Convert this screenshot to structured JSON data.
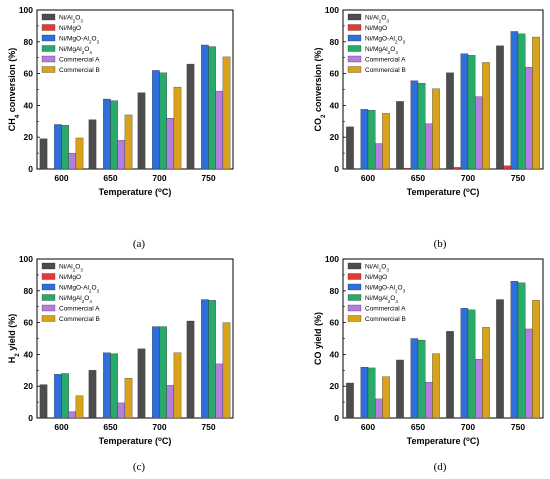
{
  "series_names": [
    [
      "Ni/Al",
      "2",
      "O",
      "3"
    ],
    [
      "Ni/MgO"
    ],
    [
      "Ni/MgO-Al",
      "2",
      "O",
      "3"
    ],
    [
      "Ni/MgAl",
      "2",
      "O",
      "4"
    ],
    [
      "Commercial A"
    ],
    [
      "Commercial B"
    ]
  ],
  "colors": {
    "Ni/Al2O3": "#4d4d4d",
    "Ni/MgO": "#e53935",
    "Ni/MgO-Al2O3": "#2f6fdb",
    "Ni/MgAl2O4": "#2aaa6a",
    "Commercial A": "#b47ee0",
    "Commercial B": "#d8a21c"
  },
  "chart_data": [
    {
      "type": "bar",
      "panel_label": "(a)",
      "ylabel": [
        "CH",
        "4",
        " conversion (%)"
      ],
      "xlabel": [
        "Temperature (",
        "o",
        "C)"
      ],
      "categories": [
        "600",
        "650",
        "700",
        "750"
      ],
      "ylim": [
        0,
        100
      ],
      "yticks": [
        0,
        20,
        40,
        60,
        80,
        100
      ],
      "series": [
        {
          "name": "Ni/Al2O3",
          "values": [
            19,
            31,
            48,
            66
          ]
        },
        {
          "name": "Ni/MgO",
          "values": [
            0,
            0,
            0,
            0
          ]
        },
        {
          "name": "Ni/MgO-Al2O3",
          "values": [
            28,
            44,
            62,
            78
          ]
        },
        {
          "name": "Ni/MgAl2O4",
          "values": [
            27.5,
            43,
            60.5,
            77
          ]
        },
        {
          "name": "Commercial A",
          "values": [
            10,
            18,
            32,
            49
          ]
        },
        {
          "name": "Commercial B",
          "values": [
            19.5,
            34,
            51.5,
            70.5
          ]
        }
      ]
    },
    {
      "type": "bar",
      "panel_label": "(b)",
      "ylabel": [
        "CO",
        "2",
        " conversion (%)"
      ],
      "xlabel": [
        "Temperature (",
        "o",
        "C)"
      ],
      "categories": [
        "600",
        "650",
        "700",
        "750"
      ],
      "ylim": [
        0,
        100
      ],
      "yticks": [
        0,
        20,
        40,
        60,
        80,
        100
      ],
      "series": [
        {
          "name": "Ni/Al2O3",
          "values": [
            26.5,
            42.5,
            60.5,
            77.5
          ]
        },
        {
          "name": "Ni/MgO",
          "values": [
            0,
            0.5,
            1,
            2
          ]
        },
        {
          "name": "Ni/MgO-Al2O3",
          "values": [
            37.5,
            55.5,
            72.5,
            86.5
          ]
        },
        {
          "name": "Ni/MgAl2O4",
          "values": [
            37,
            54,
            71.5,
            85
          ]
        },
        {
          "name": "Commercial A",
          "values": [
            16,
            28.5,
            45.5,
            64
          ]
        },
        {
          "name": "Commercial B",
          "values": [
            35,
            50.5,
            67,
            83
          ]
        }
      ]
    },
    {
      "type": "bar",
      "panel_label": "(c)",
      "ylabel": [
        "H",
        "2",
        " yield (%)"
      ],
      "xlabel": [
        "Temperature (",
        "o",
        "C)"
      ],
      "categories": [
        "600",
        "650",
        "700",
        "750"
      ],
      "ylim": [
        0,
        100
      ],
      "yticks": [
        0,
        20,
        40,
        60,
        80,
        100
      ],
      "series": [
        {
          "name": "Ni/Al2O3",
          "values": [
            21,
            30,
            43.5,
            61
          ]
        },
        {
          "name": "Ni/MgO",
          "values": [
            0,
            0,
            0,
            0
          ]
        },
        {
          "name": "Ni/MgO-Al2O3",
          "values": [
            27.5,
            41,
            57.5,
            74.5
          ]
        },
        {
          "name": "Ni/MgAl2O4",
          "values": [
            28,
            40.5,
            57.5,
            74
          ]
        },
        {
          "name": "Commercial A",
          "values": [
            4,
            9.5,
            20.5,
            34
          ]
        },
        {
          "name": "Commercial B",
          "values": [
            14,
            25,
            41,
            60
          ]
        }
      ]
    },
    {
      "type": "bar",
      "panel_label": "(d)",
      "ylabel": [
        "CO yield (%)"
      ],
      "xlabel": [
        "Temperature (",
        "o",
        "C)"
      ],
      "categories": [
        "600",
        "650",
        "700",
        "750"
      ],
      "ylim": [
        0,
        100
      ],
      "yticks": [
        0,
        20,
        40,
        60,
        80,
        100
      ],
      "series": [
        {
          "name": "Ni/Al2O3",
          "values": [
            22,
            36.5,
            54.5,
            74.5
          ]
        },
        {
          "name": "Ni/MgO",
          "values": [
            0,
            0,
            0,
            0
          ]
        },
        {
          "name": "Ni/MgO-Al2O3",
          "values": [
            32,
            50,
            69,
            86
          ]
        },
        {
          "name": "Ni/MgAl2O4",
          "values": [
            31.5,
            49,
            68,
            85
          ]
        },
        {
          "name": "Commercial A",
          "values": [
            12,
            22.5,
            37,
            56
          ]
        },
        {
          "name": "Commercial B",
          "values": [
            26,
            40.5,
            57,
            74
          ]
        }
      ]
    }
  ]
}
